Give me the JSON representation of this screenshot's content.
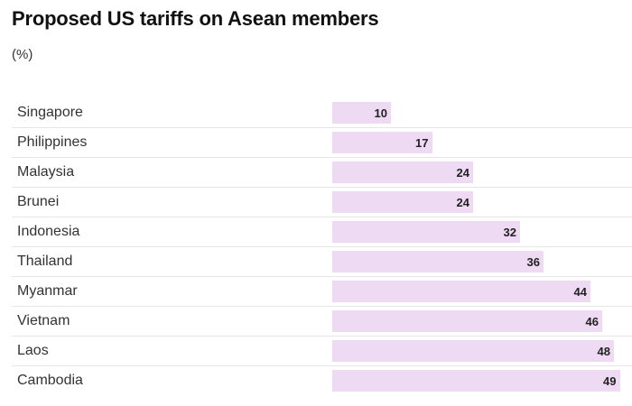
{
  "chart_data": {
    "type": "bar",
    "orientation": "horizontal",
    "title": "Proposed US tariffs on Asean members",
    "subtitle": "(%)",
    "categories": [
      "Singapore",
      "Philippines",
      "Malaysia",
      "Brunei",
      "Indonesia",
      "Thailand",
      "Myanmar",
      "Vietnam",
      "Laos",
      "Cambodia"
    ],
    "values": [
      10,
      17,
      24,
      24,
      32,
      36,
      44,
      46,
      48,
      49
    ],
    "xlim": [
      0,
      50
    ],
    "bar_color": "#eedaf2",
    "grid": false,
    "legend": false
  }
}
